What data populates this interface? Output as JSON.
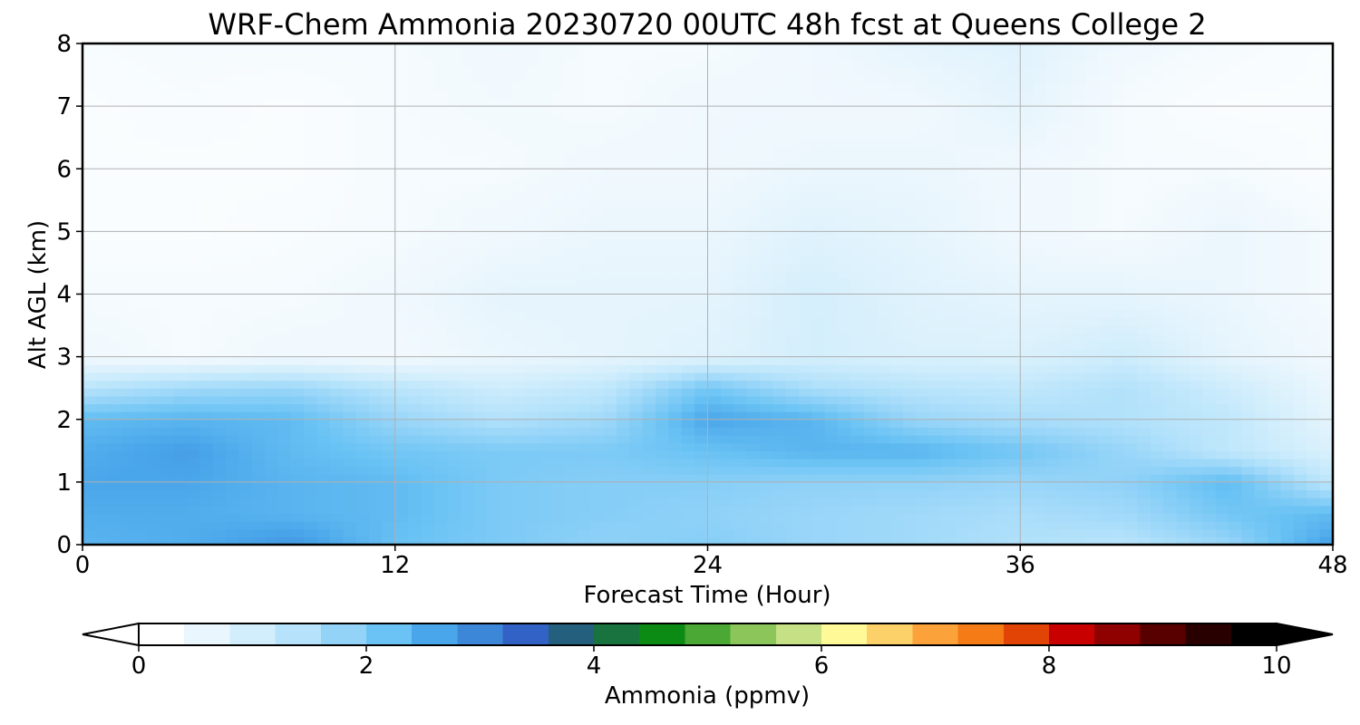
{
  "chart_data": {
    "type": "heatmap",
    "title": "WRF-Chem Ammonia  20230720 00UTC 48h fcst at Queens College 2",
    "xlabel": "Forecast Time (Hour)",
    "ylabel": "Alt AGL (km)",
    "xlim": [
      0,
      48
    ],
    "ylim": [
      0,
      8
    ],
    "x_ticks": [
      0,
      12,
      24,
      36,
      48
    ],
    "y_ticks": [
      0,
      1,
      2,
      3,
      4,
      5,
      6,
      7,
      8
    ],
    "grid": true,
    "x_hours": [
      0,
      4,
      8,
      12,
      16,
      20,
      24,
      28,
      32,
      36,
      40,
      44,
      48
    ],
    "z_levels_km": [
      0,
      0.5,
      1,
      1.5,
      2,
      2.5,
      3,
      4,
      5,
      6,
      7,
      8
    ],
    "values_ppmv": [
      [
        2.3,
        2.4,
        2.7,
        2.1,
        1.9,
        1.7,
        1.8,
        1.6,
        1.5,
        1.3,
        1.2,
        1.6,
        2.6
      ],
      [
        2.4,
        2.4,
        2.3,
        2.2,
        1.9,
        1.8,
        1.7,
        1.6,
        1.5,
        1.4,
        1.5,
        2.0,
        2.2
      ],
      [
        2.5,
        2.5,
        2.3,
        2.2,
        1.9,
        1.8,
        1.8,
        1.7,
        1.7,
        1.6,
        1.7,
        2.2,
        1.1
      ],
      [
        2.4,
        2.6,
        2.2,
        2.0,
        1.9,
        1.9,
        2.1,
        2.3,
        2.3,
        2.0,
        1.6,
        1.1,
        0.7
      ],
      [
        2.2,
        2.3,
        2.2,
        1.6,
        1.3,
        1.5,
        2.5,
        2.3,
        1.6,
        1.4,
        1.3,
        1.1,
        0.5
      ],
      [
        1.2,
        1.5,
        1.6,
        1.2,
        0.9,
        1.1,
        2.0,
        1.4,
        1.2,
        1.1,
        1.3,
        0.9,
        0.4
      ],
      [
        0.3,
        0.2,
        0.3,
        0.25,
        0.4,
        0.5,
        0.6,
        0.8,
        0.7,
        0.7,
        0.9,
        0.5,
        0.3
      ],
      [
        0.2,
        0.2,
        0.2,
        0.3,
        0.5,
        0.5,
        0.5,
        0.8,
        0.6,
        0.5,
        0.5,
        0.4,
        0.2
      ],
      [
        0.1,
        0.1,
        0.15,
        0.2,
        0.3,
        0.4,
        0.4,
        0.6,
        0.5,
        0.3,
        0.2,
        0.4,
        0.2
      ],
      [
        0.1,
        0.1,
        0.1,
        0.2,
        0.2,
        0.3,
        0.3,
        0.4,
        0.4,
        0.3,
        0.2,
        0.2,
        0.1
      ],
      [
        0.1,
        0.15,
        0.1,
        0.2,
        0.25,
        0.2,
        0.3,
        0.3,
        0.3,
        0.5,
        0.2,
        0.1,
        0.1
      ],
      [
        0.15,
        0.2,
        0.2,
        0.2,
        0.3,
        0.2,
        0.2,
        0.3,
        0.5,
        0.6,
        0.3,
        0.2,
        0.1
      ]
    ],
    "colorbar": {
      "label": "Ammonia  (ppmv)",
      "ticks": [
        0,
        2,
        4,
        6,
        8,
        10
      ],
      "range": [
        0,
        10
      ],
      "extend": "both",
      "colors": [
        "#ffffff",
        "#eaf6fd",
        "#d2eefc",
        "#b6e3fb",
        "#93d3f8",
        "#6ac3f4",
        "#4aa6ea",
        "#3d87d9",
        "#3262c5",
        "#245f7e",
        "#18733e",
        "#0b8a14",
        "#4ca834",
        "#8cc65a",
        "#c6e085",
        "#fffa97",
        "#fdd16a",
        "#fba33a",
        "#f57b17",
        "#e24406",
        "#c80000",
        "#8f0000",
        "#580000",
        "#280000",
        "#000000"
      ]
    }
  }
}
